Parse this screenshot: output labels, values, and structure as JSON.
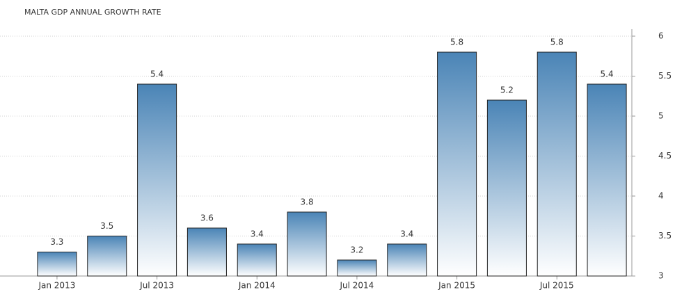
{
  "chart_data": {
    "type": "bar",
    "title": "MALTA GDP ANNUAL GROWTH RATE",
    "categories": [
      "Jan 2013",
      null,
      "Jul 2013",
      null,
      "Jan 2014",
      null,
      "Jul 2014",
      null,
      "Jan 2015",
      null,
      "Jul 2015",
      null
    ],
    "values": [
      3.3,
      3.5,
      5.4,
      3.6,
      3.4,
      3.8,
      3.2,
      3.4,
      5.8,
      5.2,
      5.8,
      5.4
    ],
    "color": "#4a84b6",
    "ylim": [
      3,
      6
    ],
    "yticks": [
      3,
      3.5,
      4,
      4.5,
      5,
      5.5,
      6
    ],
    "grid": true
  }
}
